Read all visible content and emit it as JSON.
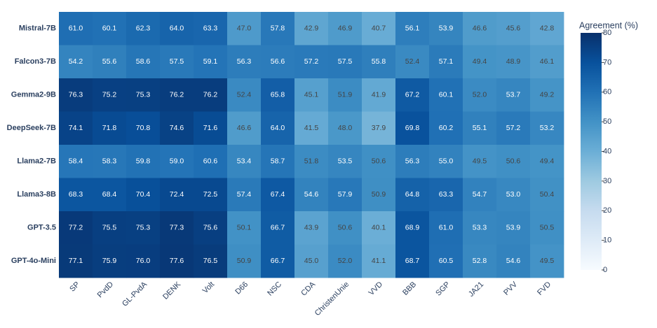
{
  "chart_data": {
    "type": "heatmap",
    "categories": [
      "SP",
      "PvdD",
      "GL-PvdA",
      "DENK",
      "Volt",
      "D66",
      "NSC",
      "CDA",
      "ChristenUnie",
      "VVD",
      "BBB",
      "SGP",
      "JA21",
      "PVV",
      "FVD"
    ],
    "rows": [
      "Mistral-7B",
      "Falcon3-7B",
      "Gemma2-9B",
      "DeepSeek-7B",
      "Llama2-7B",
      "Llama3-8B",
      "GPT-3.5",
      "GPT-4o-Mini"
    ],
    "values": [
      [
        61.0,
        60.1,
        62.3,
        64.0,
        63.3,
        47.0,
        57.8,
        42.9,
        46.9,
        40.7,
        56.1,
        53.9,
        46.6,
        45.6,
        42.8
      ],
      [
        54.2,
        55.6,
        58.6,
        57.5,
        59.1,
        56.3,
        56.6,
        57.2,
        57.5,
        55.8,
        52.4,
        57.1,
        49.4,
        48.9,
        46.1
      ],
      [
        76.3,
        75.2,
        75.3,
        76.2,
        76.2,
        52.4,
        65.8,
        45.1,
        51.9,
        41.9,
        67.2,
        60.1,
        52.0,
        53.7,
        49.2
      ],
      [
        74.1,
        71.8,
        70.8,
        74.6,
        71.6,
        46.6,
        64.0,
        41.5,
        48.0,
        37.9,
        69.8,
        60.2,
        55.1,
        57.2,
        53.2
      ],
      [
        58.4,
        58.3,
        59.8,
        59.0,
        60.6,
        53.4,
        58.7,
        51.8,
        53.5,
        50.6,
        56.3,
        55.0,
        49.5,
        50.6,
        49.4
      ],
      [
        68.3,
        68.4,
        70.4,
        72.4,
        72.5,
        57.4,
        67.4,
        54.6,
        57.9,
        50.9,
        64.8,
        63.3,
        54.7,
        53.0,
        50.4
      ],
      [
        77.2,
        75.5,
        75.3,
        77.3,
        75.6,
        50.1,
        66.7,
        43.9,
        50.6,
        40.1,
        68.9,
        61.0,
        53.3,
        53.9,
        50.5
      ],
      [
        77.1,
        75.9,
        76.0,
        77.6,
        76.5,
        50.9,
        66.7,
        45.0,
        52.0,
        41.1,
        68.7,
        60.5,
        52.8,
        54.6,
        49.5
      ]
    ],
    "value_labels": [
      [
        "61.0",
        "60.1",
        "62.3",
        "64.0",
        "63.3",
        "47.0",
        "57.8",
        "42.9",
        "46.9",
        "40.7",
        "56.1",
        "53.9",
        "46.6",
        "45.6",
        "42.8"
      ],
      [
        "54.2",
        "55.6",
        "58.6",
        "57.5",
        "59.1",
        "56.3",
        "56.6",
        "57.2",
        "57.5",
        "55.8",
        "52.4",
        "57.1",
        "49.4",
        "48.9",
        "46.1"
      ],
      [
        "76.3",
        "75.2",
        "75.3",
        "76.2",
        "76.2",
        "52.4",
        "65.8",
        "45.1",
        "51.9",
        "41.9",
        "67.2",
        "60.1",
        "52.0",
        "53.7",
        "49.2"
      ],
      [
        "74.1",
        "71.8",
        "70.8",
        "74.6",
        "71.6",
        "46.6",
        "64.0",
        "41.5",
        "48.0",
        "37.9",
        "69.8",
        "60.2",
        "55.1",
        "57.2",
        "53.2"
      ],
      [
        "58.4",
        "58.3",
        "59.8",
        "59.0",
        "60.6",
        "53.4",
        "58.7",
        "51.8",
        "53.5",
        "50.6",
        "56.3",
        "55.0",
        "49.5",
        "50.6",
        "49.4"
      ],
      [
        "68.3",
        "68.4",
        "70.4",
        "72.4",
        "72.5",
        "57.4",
        "67.4",
        "54.6",
        "57.9",
        "50.9",
        "64.8",
        "63.3",
        "54.7",
        "53.0",
        "50.4"
      ],
      [
        "77.2",
        "75.5",
        "75.3",
        "77.3",
        "75.6",
        "50.1",
        "66.7",
        "43.9",
        "50.6",
        "40.1",
        "68.9",
        "61.0",
        "53.3",
        "53.9",
        "50.5"
      ],
      [
        "77.1",
        "75.9",
        "76.0",
        "77.6",
        "76.5",
        "50.9",
        "66.7",
        "45.0",
        "52.0",
        "41.1",
        "68.7",
        "60.5",
        "52.8",
        "54.6",
        "49.5"
      ]
    ],
    "zlim": [
      0,
      80
    ],
    "colorscale": [
      "#f7fbff",
      "#deebf7",
      "#c6dbef",
      "#9ecae1",
      "#6baed6",
      "#4292c6",
      "#2171b5",
      "#08519c",
      "#08306b"
    ],
    "colorbar": {
      "title": "Agreement (%)",
      "ticks": [
        0,
        10,
        20,
        30,
        40,
        50,
        60,
        70,
        80
      ]
    }
  }
}
